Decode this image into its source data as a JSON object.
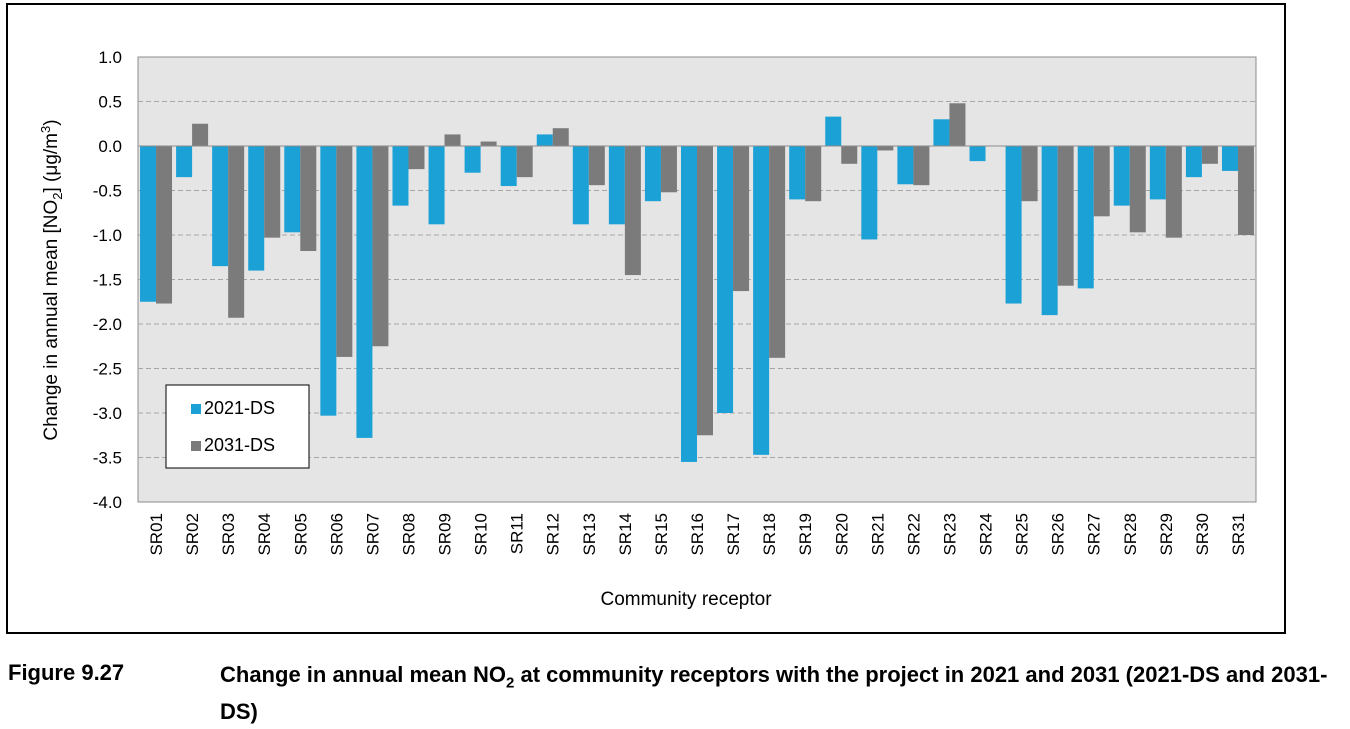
{
  "chart_data": {
    "type": "bar",
    "title": "",
    "xlabel": "Community receptor",
    "ylabel_parts": [
      "Change in annual mean [NO",
      "2",
      "] (μg/m",
      "3",
      ")"
    ],
    "ylim": [
      -4.0,
      1.0
    ],
    "yticks": [
      "1.0",
      "0.5",
      "0.0",
      "-0.5",
      "-1.0",
      "-1.5",
      "-2.0",
      "-2.5",
      "-3.0",
      "-3.5",
      "-4.0"
    ],
    "ytick_values": [
      1.0,
      0.5,
      0.0,
      -0.5,
      -1.0,
      -1.5,
      -2.0,
      -2.5,
      -3.0,
      -3.5,
      -4.0
    ],
    "grid": "horizontal-dashed",
    "legend_position": "bottom-left",
    "categories": [
      "SR01",
      "SR02",
      "SR03",
      "SR04",
      "SR05",
      "SR06",
      "SR07",
      "SR08",
      "SR09",
      "SR10",
      "SR11",
      "SR12",
      "SR13",
      "SR14",
      "SR15",
      "SR16",
      "SR17",
      "SR18",
      "SR19",
      "SR20",
      "SR21",
      "SR22",
      "SR23",
      "SR24",
      "SR25",
      "SR26",
      "SR27",
      "SR28",
      "SR29",
      "SR30",
      "SR31"
    ],
    "series": [
      {
        "name": "2021-DS",
        "color": "#1ba1d6",
        "values": [
          -1.75,
          -0.35,
          -1.35,
          -1.4,
          -0.97,
          -3.03,
          -3.28,
          -0.67,
          -0.88,
          -0.3,
          -0.45,
          0.13,
          -0.88,
          -0.88,
          -0.62,
          -3.55,
          -3.0,
          -3.47,
          -0.6,
          0.33,
          -1.05,
          -0.43,
          0.3,
          -0.17,
          -1.77,
          -1.9,
          -1.6,
          -0.67,
          -0.6,
          -0.35,
          -0.28
        ]
      },
      {
        "name": "2031-DS",
        "color": "#7b7b7b",
        "values": [
          -1.77,
          0.25,
          -1.93,
          -1.03,
          -1.18,
          -2.37,
          -2.25,
          -0.26,
          0.13,
          0.05,
          -0.35,
          0.2,
          -0.44,
          -1.45,
          -0.52,
          -3.25,
          -1.63,
          -2.38,
          -0.62,
          -0.2,
          -0.05,
          -0.44,
          0.48,
          0.0,
          -0.62,
          -1.57,
          -0.79,
          -0.97,
          -1.03,
          -0.2,
          -1.0
        ]
      }
    ]
  },
  "caption": {
    "label": "Figure 9.27",
    "text_before_sub": "Change in annual mean NO",
    "sub": "2",
    "text_after_sub": " at community receptors with the project in 2021 and 2031 (2021-DS and 2031-DS)"
  },
  "colors": {
    "plot_background": "#e5e5e5",
    "gridline": "#a6a6a6"
  }
}
